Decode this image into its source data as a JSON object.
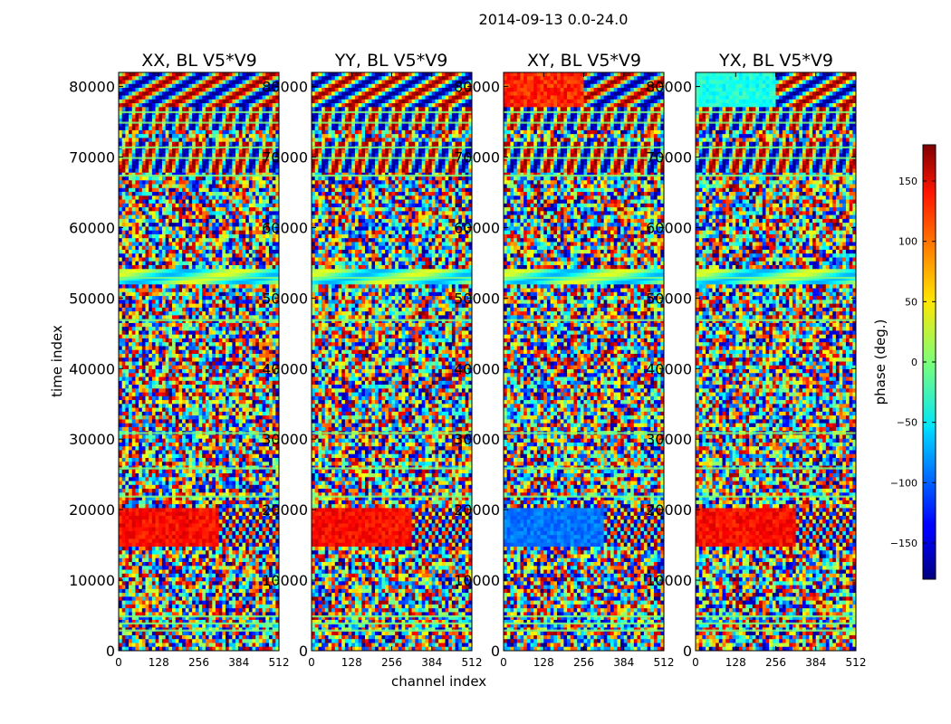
{
  "figure": {
    "title": "2014-09-13 0.0-24.0"
  },
  "chart_data": {
    "type": "heatmap",
    "title": "2014-09-13 0.0-24.0",
    "xlabel": "channel index",
    "ylabel": "time index",
    "x_range": [
      0,
      512
    ],
    "y_range": [
      0,
      82000
    ],
    "x_ticks": [
      "0",
      "128",
      "256",
      "384",
      "512"
    ],
    "y_ticks": [
      "0",
      "10000",
      "20000",
      "30000",
      "40000",
      "50000",
      "60000",
      "70000",
      "80000"
    ],
    "x_tick_values": [
      0,
      128,
      256,
      384,
      512
    ],
    "y_tick_values": [
      0,
      10000,
      20000,
      30000,
      40000,
      50000,
      60000,
      70000,
      80000
    ],
    "colormap": "jet",
    "colorbar": {
      "label": "phase (deg.)",
      "range": [
        -180,
        180
      ],
      "ticks": [
        "150",
        "100",
        "50",
        "0",
        "−50",
        "−100",
        "−150"
      ],
      "tick_values": [
        150,
        100,
        50,
        0,
        -50,
        -100,
        -150
      ]
    },
    "panels": [
      {
        "title": "XX, BL V5*V9"
      },
      {
        "title": "YY, BL V5*V9"
      },
      {
        "title": "XY, BL V5*V9"
      },
      {
        "title": "YX, BL V5*V9"
      }
    ]
  }
}
